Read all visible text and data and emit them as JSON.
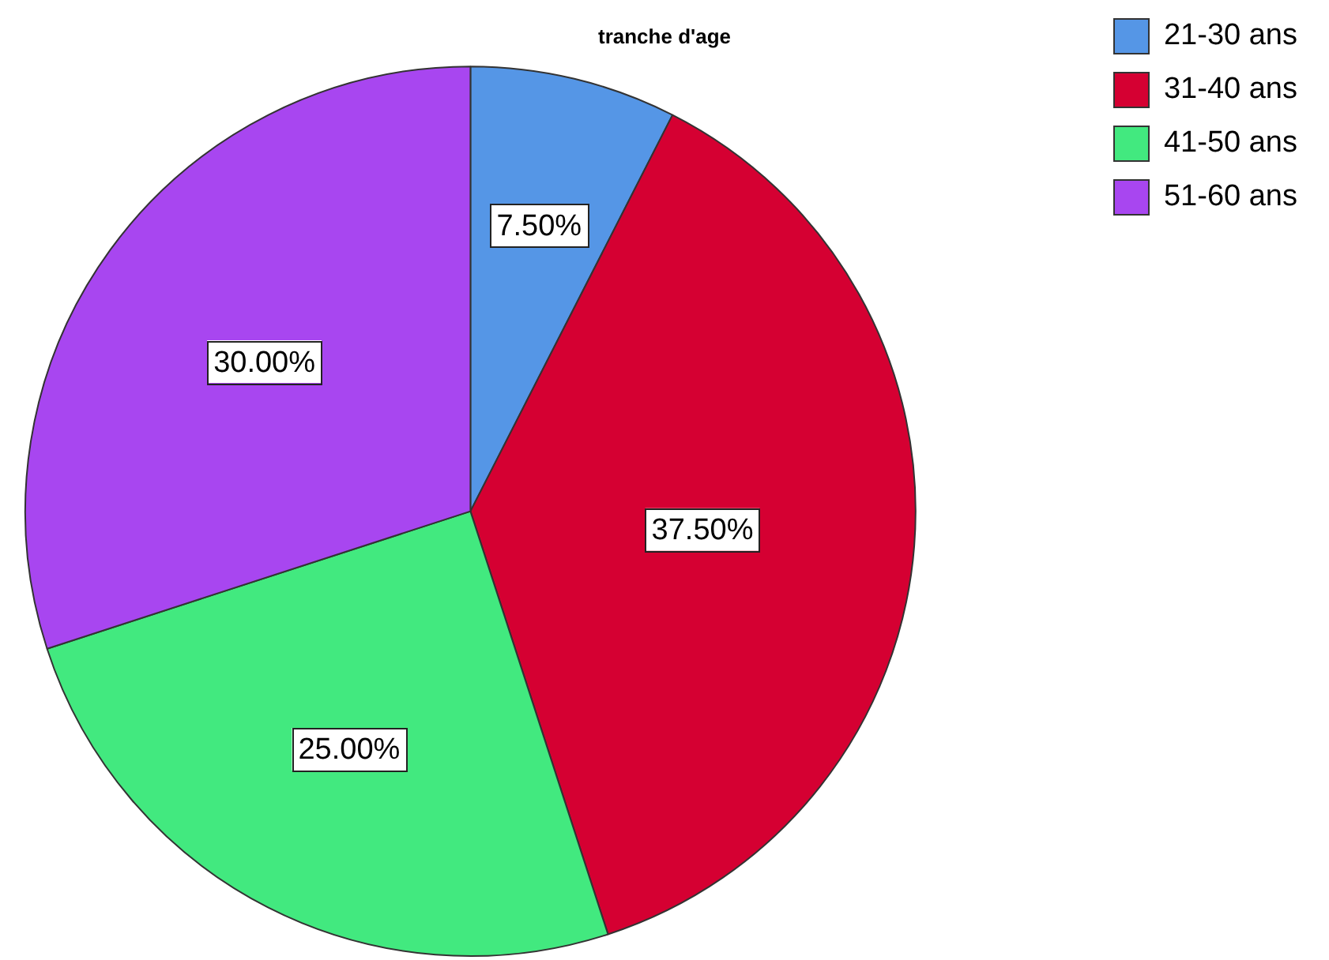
{
  "chart_data": {
    "type": "pie",
    "title": "tranche d'age",
    "categories": [
      "21-30 ans",
      "31-40 ans",
      "41-50 ans",
      "51-60 ans"
    ],
    "values": [
      7.5,
      37.5,
      25,
      30
    ],
    "colors": [
      "#5596e6",
      "#d50032",
      "#42e97f",
      "#a846f0"
    ],
    "value_labels": [
      "7.50%",
      "37.50%",
      "25.00%",
      "30.00%"
    ],
    "legend": "top right"
  }
}
